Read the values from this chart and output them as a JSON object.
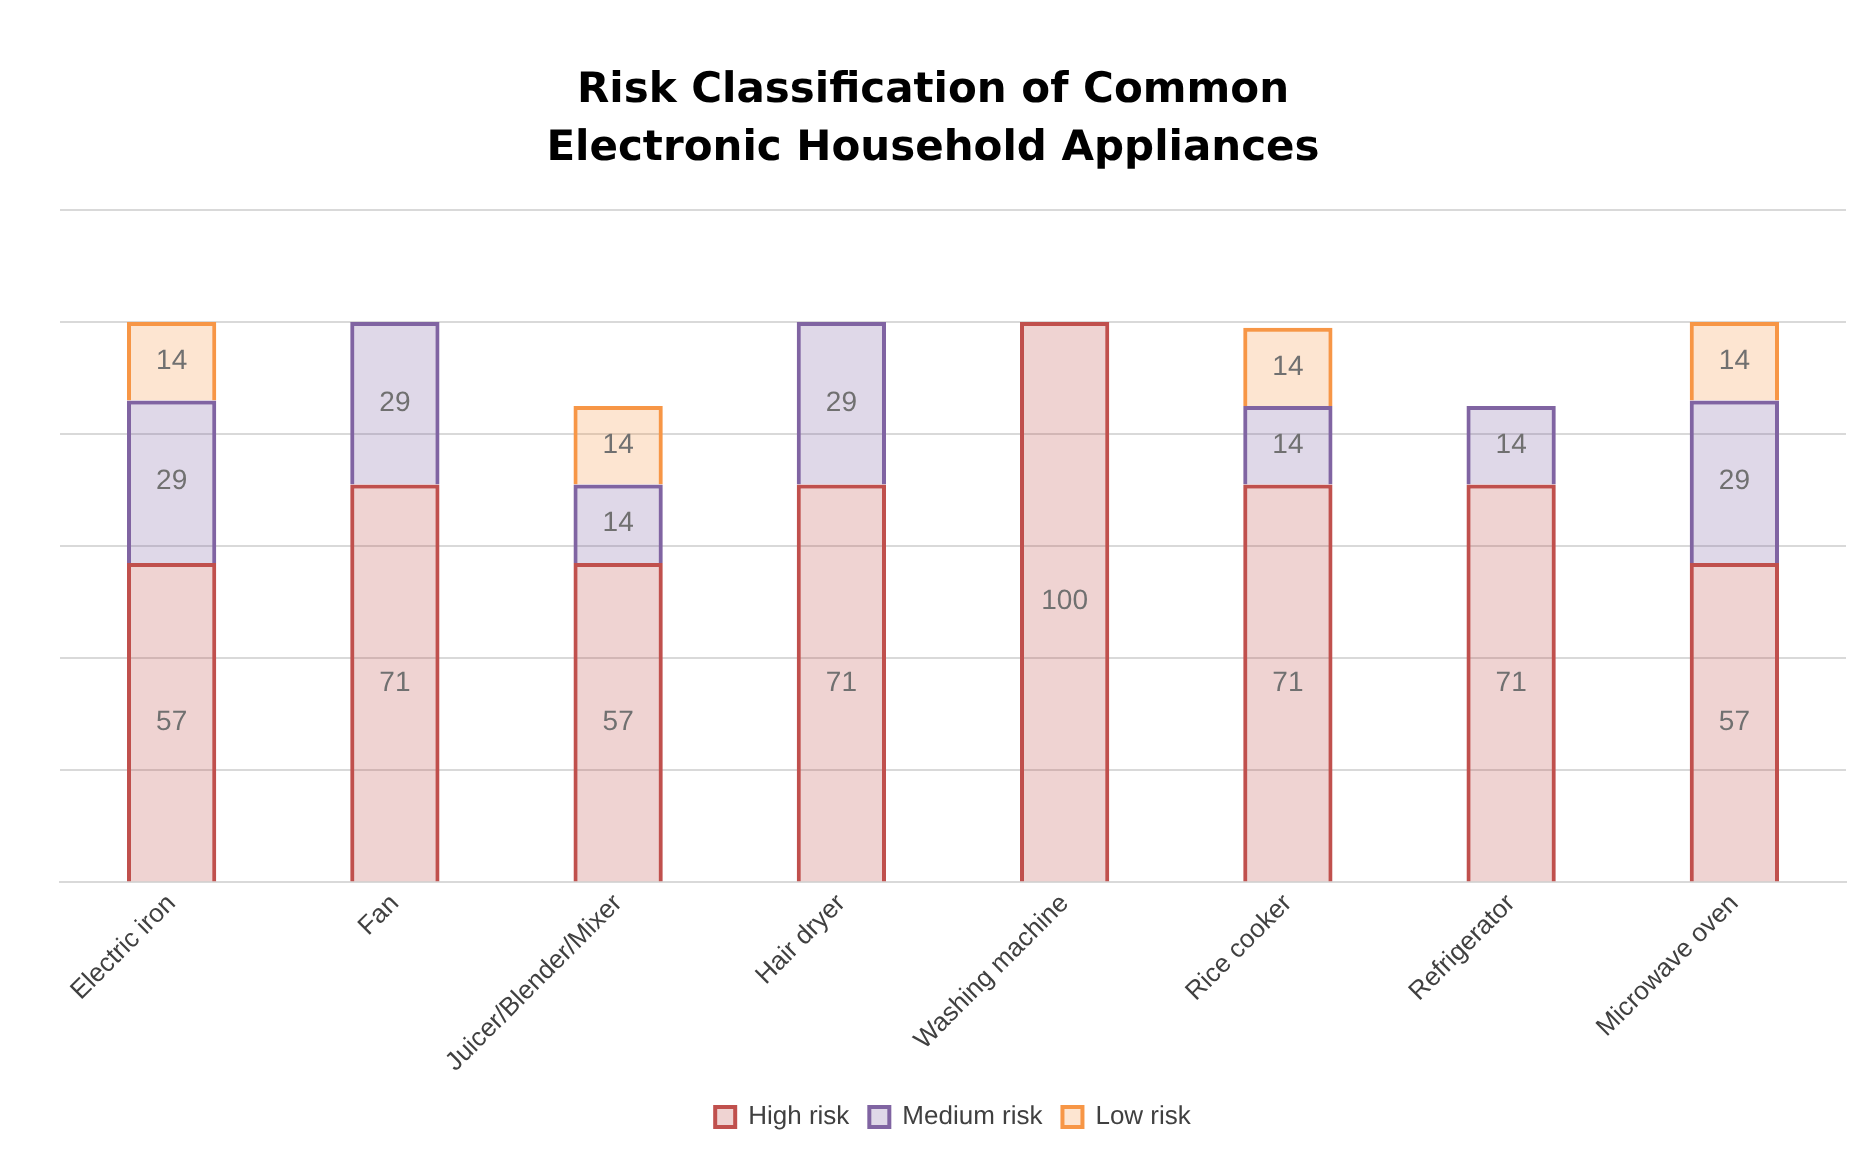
{
  "chart_data": {
    "type": "bar",
    "title": "Risk Classification of Common Electronic Household Appliances",
    "stacked": true,
    "data_labels": true,
    "grid": "y",
    "tick_labels": "x",
    "legend": "bottom",
    "categories": [
      "Electric iron",
      "Fan",
      "Juicer/Blender/Mixer",
      "Hair dryer",
      "Washing machine",
      "Rice cooker",
      "Refrigerator",
      "Microwave oven"
    ],
    "ylim": [
      0,
      120
    ],
    "yticks": [
      0,
      20,
      40,
      60,
      80,
      100,
      120
    ],
    "series": [
      {
        "name": "High risk",
        "color": "#c0504d",
        "values": [
          57,
          71,
          57,
          71,
          100,
          71,
          71,
          57
        ]
      },
      {
        "name": "Medium risk",
        "color": "#8064a2",
        "values": [
          29,
          29,
          14,
          29,
          null,
          14,
          14,
          29
        ]
      },
      {
        "name": "Low risk",
        "color": "#f79646",
        "values": [
          14,
          null,
          14,
          null,
          null,
          14,
          null,
          14
        ]
      }
    ]
  }
}
